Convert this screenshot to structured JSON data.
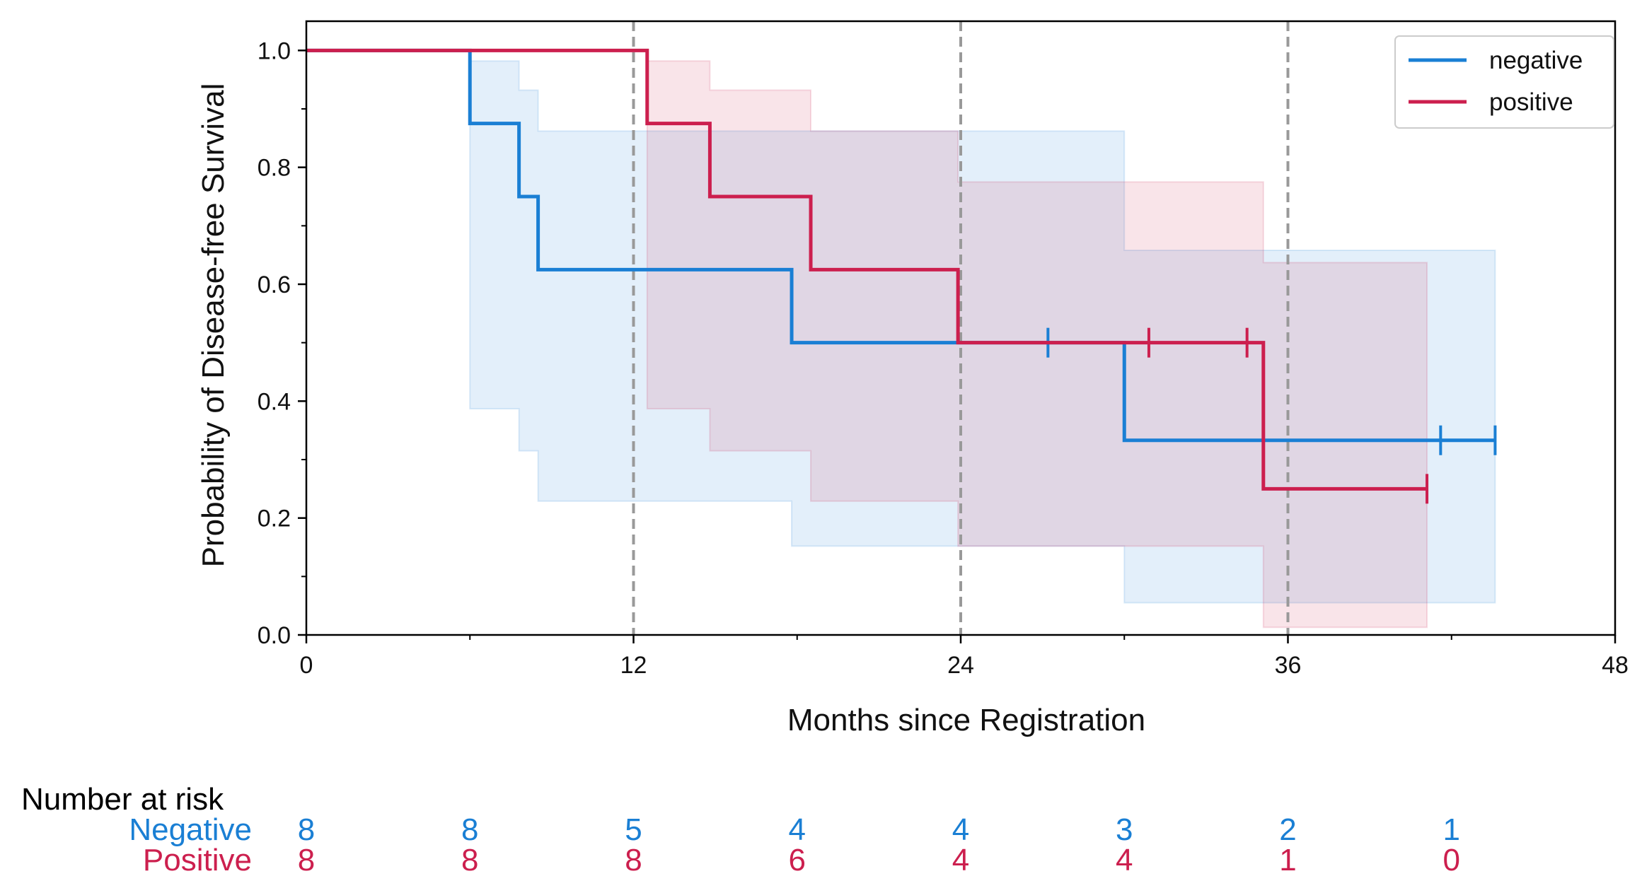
{
  "chart_data": {
    "type": "line",
    "subtype": "kaplan-meier step plot with 95% confidence bands",
    "xlabel": "Months since Registration",
    "ylabel": "Probability of Disease-free Survival",
    "xlim": [
      0,
      48
    ],
    "ylim": [
      0,
      1.05
    ],
    "x_ticks": [
      0,
      12,
      24,
      36,
      48
    ],
    "y_ticks": [
      0.0,
      0.2,
      0.4,
      0.6,
      0.8,
      1.0
    ],
    "y_tick_labels": [
      "0.0",
      "0.2",
      "0.4",
      "0.6",
      "0.8",
      "1.0"
    ],
    "reference_lines_x": [
      12,
      24,
      36
    ],
    "grid": false,
    "legend_position": "top-right",
    "series": [
      {
        "name": "negative",
        "color": "#1a7fd4",
        "band_color": "#d6e8f7",
        "steps": [
          [
            0,
            1.0
          ],
          [
            6,
            0.875
          ],
          [
            7.8,
            0.75
          ],
          [
            8.5,
            0.625
          ],
          [
            17.8,
            0.5
          ],
          [
            30,
            0.333
          ],
          [
            43.6,
            0.333
          ]
        ],
        "ci_lower": [
          [
            0,
            1.0
          ],
          [
            6,
            0.387
          ],
          [
            7.8,
            0.315
          ],
          [
            8.5,
            0.229
          ],
          [
            17.8,
            0.152
          ],
          [
            30,
            0.055
          ],
          [
            43.6,
            0.055
          ]
        ],
        "ci_upper": [
          [
            0,
            1.0
          ],
          [
            6,
            0.982
          ],
          [
            7.8,
            0.932
          ],
          [
            8.5,
            0.862
          ],
          [
            17.8,
            0.862
          ],
          [
            30,
            0.658
          ],
          [
            43.6,
            0.658
          ]
        ],
        "censored": [
          27.2,
          41.6,
          43.6
        ]
      },
      {
        "name": "positive",
        "color": "#cc1f4e",
        "band_color": "#f9d9e1",
        "steps": [
          [
            0,
            1.0
          ],
          [
            12.5,
            0.875
          ],
          [
            14.8,
            0.75
          ],
          [
            18.5,
            0.625
          ],
          [
            23.9,
            0.5
          ],
          [
            35.1,
            0.25
          ],
          [
            41.1,
            0.25
          ]
        ],
        "ci_lower": [
          [
            0,
            1.0
          ],
          [
            12.5,
            0.387
          ],
          [
            14.8,
            0.315
          ],
          [
            18.5,
            0.229
          ],
          [
            23.9,
            0.152
          ],
          [
            35.1,
            0.013
          ],
          [
            41.1,
            0.013
          ]
        ],
        "ci_upper": [
          [
            0,
            1.0
          ],
          [
            12.5,
            0.982
          ],
          [
            14.8,
            0.932
          ],
          [
            18.5,
            0.862
          ],
          [
            23.9,
            0.775
          ],
          [
            35.1,
            0.637
          ],
          [
            41.1,
            0.637
          ]
        ],
        "censored": [
          30.9,
          34.5,
          41.1
        ]
      }
    ],
    "risk_table": {
      "title": "Number at risk",
      "times": [
        0,
        6,
        12,
        18,
        24,
        30,
        36,
        42
      ],
      "rows": [
        {
          "label": "Negative",
          "color": "#1a7fd4",
          "counts": [
            "8",
            "8",
            "5",
            "4",
            "4",
            "3",
            "2",
            "1"
          ]
        },
        {
          "label": "Positive",
          "color": "#cc1f4e",
          "counts": [
            "8",
            "8",
            "8",
            "6",
            "4",
            "4",
            "1",
            "0"
          ]
        }
      ]
    }
  }
}
